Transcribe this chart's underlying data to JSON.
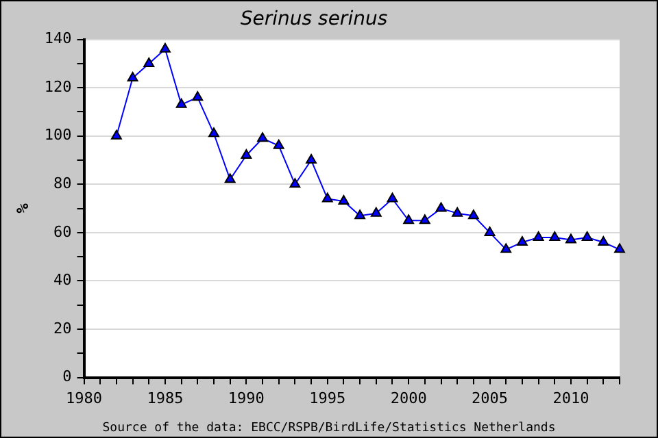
{
  "chart_data": {
    "type": "line",
    "title": "Serinus serinus",
    "ylabel": "%",
    "x": [
      1982,
      1983,
      1984,
      1985,
      1986,
      1987,
      1988,
      1989,
      1990,
      1991,
      1992,
      1993,
      1994,
      1995,
      1996,
      1997,
      1998,
      1999,
      2000,
      2001,
      2002,
      2003,
      2004,
      2005,
      2006,
      2007,
      2008,
      2009,
      2010,
      2011,
      2012,
      2013
    ],
    "series": [
      {
        "color": "#0000ff",
        "values": [
          100,
          124,
          130,
          136,
          113,
          116,
          101,
          82,
          92,
          99,
          96,
          80,
          90,
          74,
          73,
          67,
          68,
          74,
          65,
          65,
          70,
          68,
          67,
          60,
          53,
          56,
          58,
          58,
          57,
          58,
          56,
          53
        ]
      }
    ],
    "xlim": [
      1980,
      2013
    ],
    "xticks": [
      1980,
      {
        "value": 1981,
        "label": null
      },
      {
        "value": 1982,
        "label": null
      },
      {
        "value": 1983,
        "label": null
      },
      {
        "value": 1984,
        "label": null
      },
      1985,
      {
        "value": 1986,
        "label": null
      },
      {
        "value": 1987,
        "label": null
      },
      {
        "value": 1988,
        "label": null
      },
      {
        "value": 1989,
        "label": null
      },
      1990,
      {
        "value": 1991,
        "label": null
      },
      {
        "value": 1992,
        "label": null
      },
      {
        "value": 1993,
        "label": null
      },
      {
        "value": 1994,
        "label": null
      },
      1995,
      {
        "value": 1996,
        "label": null
      },
      {
        "value": 1997,
        "label": null
      },
      {
        "value": 1998,
        "label": null
      },
      {
        "value": 1999,
        "label": null
      },
      2000,
      {
        "value": 2001,
        "label": null
      },
      {
        "value": 2002,
        "label": null
      },
      {
        "value": 2003,
        "label": null
      },
      {
        "value": 2004,
        "label": null
      },
      2005,
      {
        "value": 2006,
        "label": null
      },
      {
        "value": 2007,
        "label": null
      },
      {
        "value": 2008,
        "label": null
      },
      {
        "value": 2009,
        "label": null
      },
      2010,
      {
        "value": 2011,
        "label": null
      },
      {
        "value": 2012,
        "label": null
      },
      {
        "value": 2013,
        "label": null
      }
    ],
    "ylim": [
      0,
      140
    ],
    "yticks": [
      0,
      {
        "value": 10,
        "label": null
      },
      20,
      {
        "value": 30,
        "label": null
      },
      40,
      {
        "value": 50,
        "label": null
      },
      60,
      {
        "value": 70,
        "label": null
      },
      80,
      {
        "value": 90,
        "label": null
      },
      100,
      {
        "value": 110,
        "label": null
      },
      120,
      {
        "value": 130,
        "label": null
      },
      140
    ],
    "grid": "y",
    "legend": false,
    "marker": "triangle",
    "line_style": "solid",
    "annotations": [
      "Source of the data: EBCC/RSPB/BirdLife/Statistics Netherlands"
    ]
  }
}
